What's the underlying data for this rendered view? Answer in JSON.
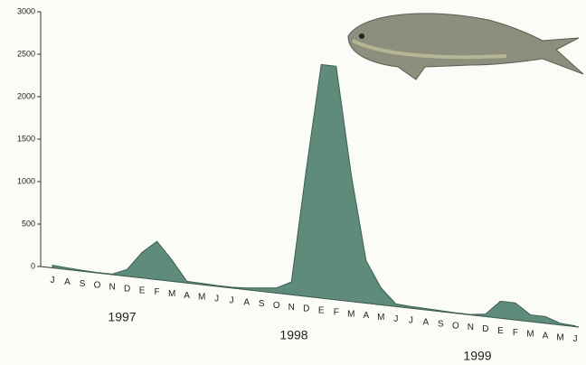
{
  "chart_data": {
    "type": "area",
    "categories": [
      "J",
      "A",
      "S",
      "O",
      "N",
      "D",
      "E",
      "F",
      "M",
      "A",
      "M",
      "J",
      "J",
      "A",
      "S",
      "O",
      "N",
      "D",
      "E",
      "F",
      "M",
      "A",
      "M",
      "J",
      "J",
      "A",
      "S",
      "O",
      "N",
      "D",
      "E",
      "F",
      "M",
      "A",
      "M",
      "J"
    ],
    "values": [
      30,
      20,
      10,
      5,
      5,
      80,
      300,
      450,
      250,
      20,
      15,
      10,
      10,
      20,
      40,
      60,
      150,
      1500,
      2750,
      2750,
      1500,
      500,
      200,
      30,
      20,
      15,
      10,
      5,
      5,
      30,
      200,
      200,
      80,
      80,
      20,
      10
    ],
    "color": "#5f8b7b",
    "ylim": [
      0,
      3000
    ],
    "yticks": [
      0,
      500,
      1000,
      1500,
      2000,
      2500,
      3000
    ],
    "annotations": [
      "1997",
      "1998",
      "1999"
    ]
  }
}
